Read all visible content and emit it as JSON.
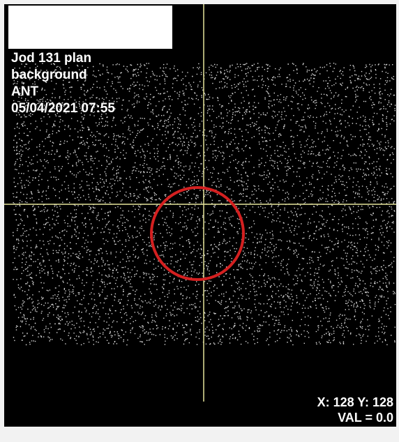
{
  "overlay": {
    "lines": [
      "Jod 131 plan",
      "background",
      "ANT",
      "05/04/2021 07:55"
    ]
  },
  "status": {
    "position": "X: 128 Y: 128",
    "value": "VAL = 0.0"
  }
}
